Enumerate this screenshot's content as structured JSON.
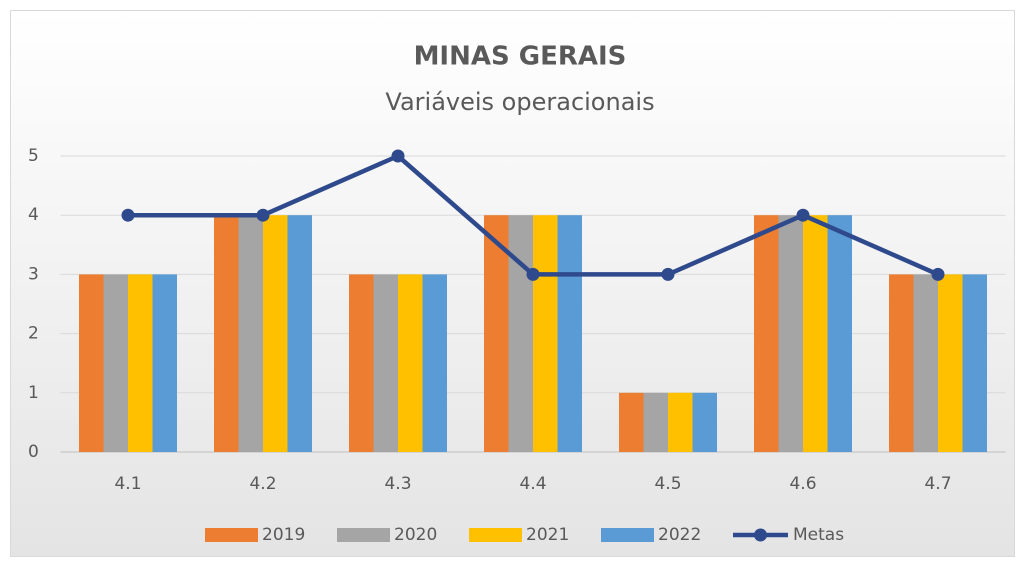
{
  "chart_data": {
    "type": "bar",
    "title": "MINAS GERAIS",
    "subtitle": "Variáveis operacionais",
    "categories": [
      "4.1",
      "4.2",
      "4.3",
      "4.4",
      "4.5",
      "4.6",
      "4.7"
    ],
    "series": [
      {
        "name": "2019",
        "color": "#ed7d31",
        "values": [
          3,
          4,
          3,
          4,
          1,
          4,
          3
        ]
      },
      {
        "name": "2020",
        "color": "#a5a5a5",
        "values": [
          3,
          4,
          3,
          4,
          1,
          4,
          3
        ]
      },
      {
        "name": "2021",
        "color": "#ffc000",
        "values": [
          3,
          4,
          3,
          4,
          1,
          4,
          3
        ]
      },
      {
        "name": "2022",
        "color": "#5b9bd5",
        "values": [
          3,
          4,
          3,
          4,
          1,
          4,
          3
        ]
      },
      {
        "name": "Metas",
        "color": "#2f4a8c",
        "type": "line",
        "values": [
          4,
          4,
          5,
          3,
          3,
          4,
          3
        ]
      }
    ],
    "ylim": [
      0,
      5
    ],
    "yticks": [
      0,
      1,
      2,
      3,
      4,
      5
    ],
    "grid": true,
    "legend": "bottom"
  }
}
